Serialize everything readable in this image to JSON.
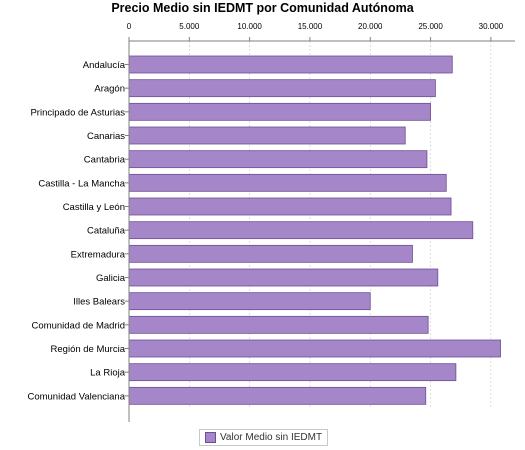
{
  "chart_data": {
    "type": "bar",
    "orientation": "horizontal",
    "title": "Precio Medio sin IEDMT por Comunidad Autónoma",
    "categories": [
      "Andalucía",
      "Aragón",
      "Principado de Asturias",
      "Canarias",
      "Cantabria",
      "Castilla - La Mancha",
      "Castilla y León",
      "Cataluña",
      "Extremadura",
      "Galicia",
      "Illes Balears",
      "Comunidad de Madrid",
      "Región de Murcia",
      "La Rioja",
      "Comunidad Valenciana"
    ],
    "series": [
      {
        "name": "Valor Medio sin IEDMT",
        "values": [
          26800,
          25400,
          25000,
          22900,
          24700,
          26300,
          26700,
          28500,
          23500,
          25600,
          20000,
          24800,
          30800,
          27100,
          24600
        ],
        "color": "#a586c8"
      }
    ],
    "xlim": [
      0,
      32000
    ],
    "x_ticks": [
      0,
      5000,
      10000,
      15000,
      20000,
      25000,
      30000
    ],
    "x_tick_labels": [
      "0",
      "5.000",
      "10.000",
      "15.000",
      "20.000",
      "25.000",
      "30.000"
    ],
    "x_axis_position": "top",
    "grid": true,
    "legend_position": "bottom-center"
  }
}
